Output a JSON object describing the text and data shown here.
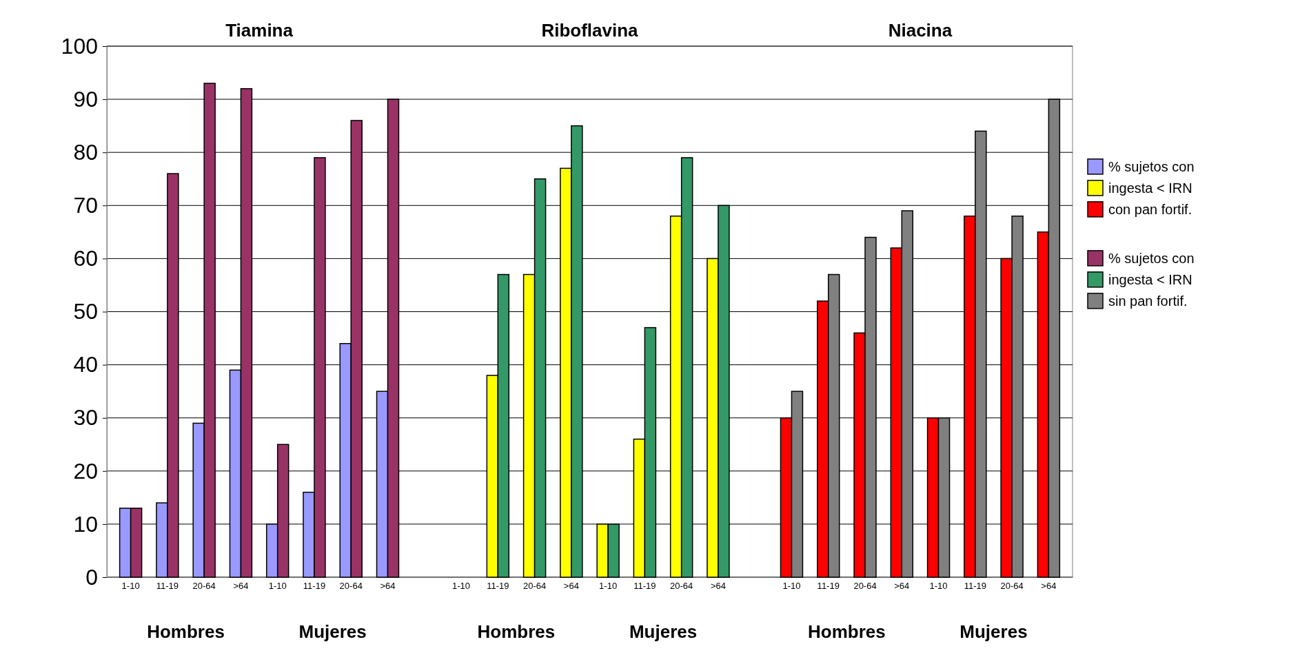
{
  "chart_data": {
    "type": "bar",
    "categories": [
      "1-10",
      "11-19",
      "20-64",
      ">64",
      "1-10",
      "11-19",
      "20-64",
      ">64",
      null,
      "1-10",
      "11-19",
      "20-64",
      ">64",
      "1-10",
      "11-19",
      "20-64",
      ">64",
      null,
      "1-10",
      "11-19",
      "20-64",
      ">64",
      "1-10",
      "11-19",
      "20-64",
      ">64"
    ],
    "series": [
      {
        "name": "% sujetos con ingesta < IRN con pan fortif.",
        "colors": [
          "#9999ff",
          "#9999ff",
          "#9999ff",
          "#9999ff",
          "#9999ff",
          "#9999ff",
          "#9999ff",
          "#9999ff",
          "#9999ff",
          "#ffff00",
          "#ffff00",
          "#ffff00",
          "#ffff00",
          "#ffff00",
          "#ffff00",
          "#ffff00",
          "#ffff00",
          "#ff0000",
          "#ff0000",
          "#ff0000",
          "#ff0000",
          "#ff0000",
          "#ff0000",
          "#ff0000",
          "#ff0000",
          "#ff0000"
        ],
        "values": [
          13,
          14,
          29,
          39,
          10,
          16,
          44,
          35,
          null,
          null,
          38,
          57,
          77,
          10,
          26,
          68,
          60,
          null,
          30,
          52,
          46,
          62,
          30,
          68,
          60,
          65
        ]
      },
      {
        "name": "% sujetos con ingesta < IRN sin pan fortif.",
        "colors": [
          "#993366",
          "#993366",
          "#993366",
          "#993366",
          "#993366",
          "#993366",
          "#993366",
          "#993366",
          "#993366",
          "#339966",
          "#339966",
          "#339966",
          "#339966",
          "#339966",
          "#339966",
          "#339966",
          "#339966",
          "#808080",
          "#808080",
          "#808080",
          "#808080",
          "#808080",
          "#808080",
          "#808080",
          "#808080",
          "#808080"
        ],
        "values": [
          13,
          76,
          93,
          92,
          25,
          79,
          86,
          90,
          null,
          null,
          57,
          75,
          85,
          10,
          47,
          79,
          70,
          null,
          35,
          57,
          64,
          69,
          30,
          84,
          68,
          90
        ]
      }
    ],
    "ylim": [
      0,
      100
    ],
    "yticks": [
      0,
      10,
      20,
      30,
      40,
      50,
      60,
      70,
      80,
      90,
      100
    ],
    "grid": "y",
    "legend": "right",
    "annotations": [
      "Tiamina",
      "Riboflavina",
      "Niacina",
      "Hombres",
      "Mujeres",
      "Hombres",
      "Mujeres",
      "Hombres",
      "Mujeres"
    ]
  }
}
